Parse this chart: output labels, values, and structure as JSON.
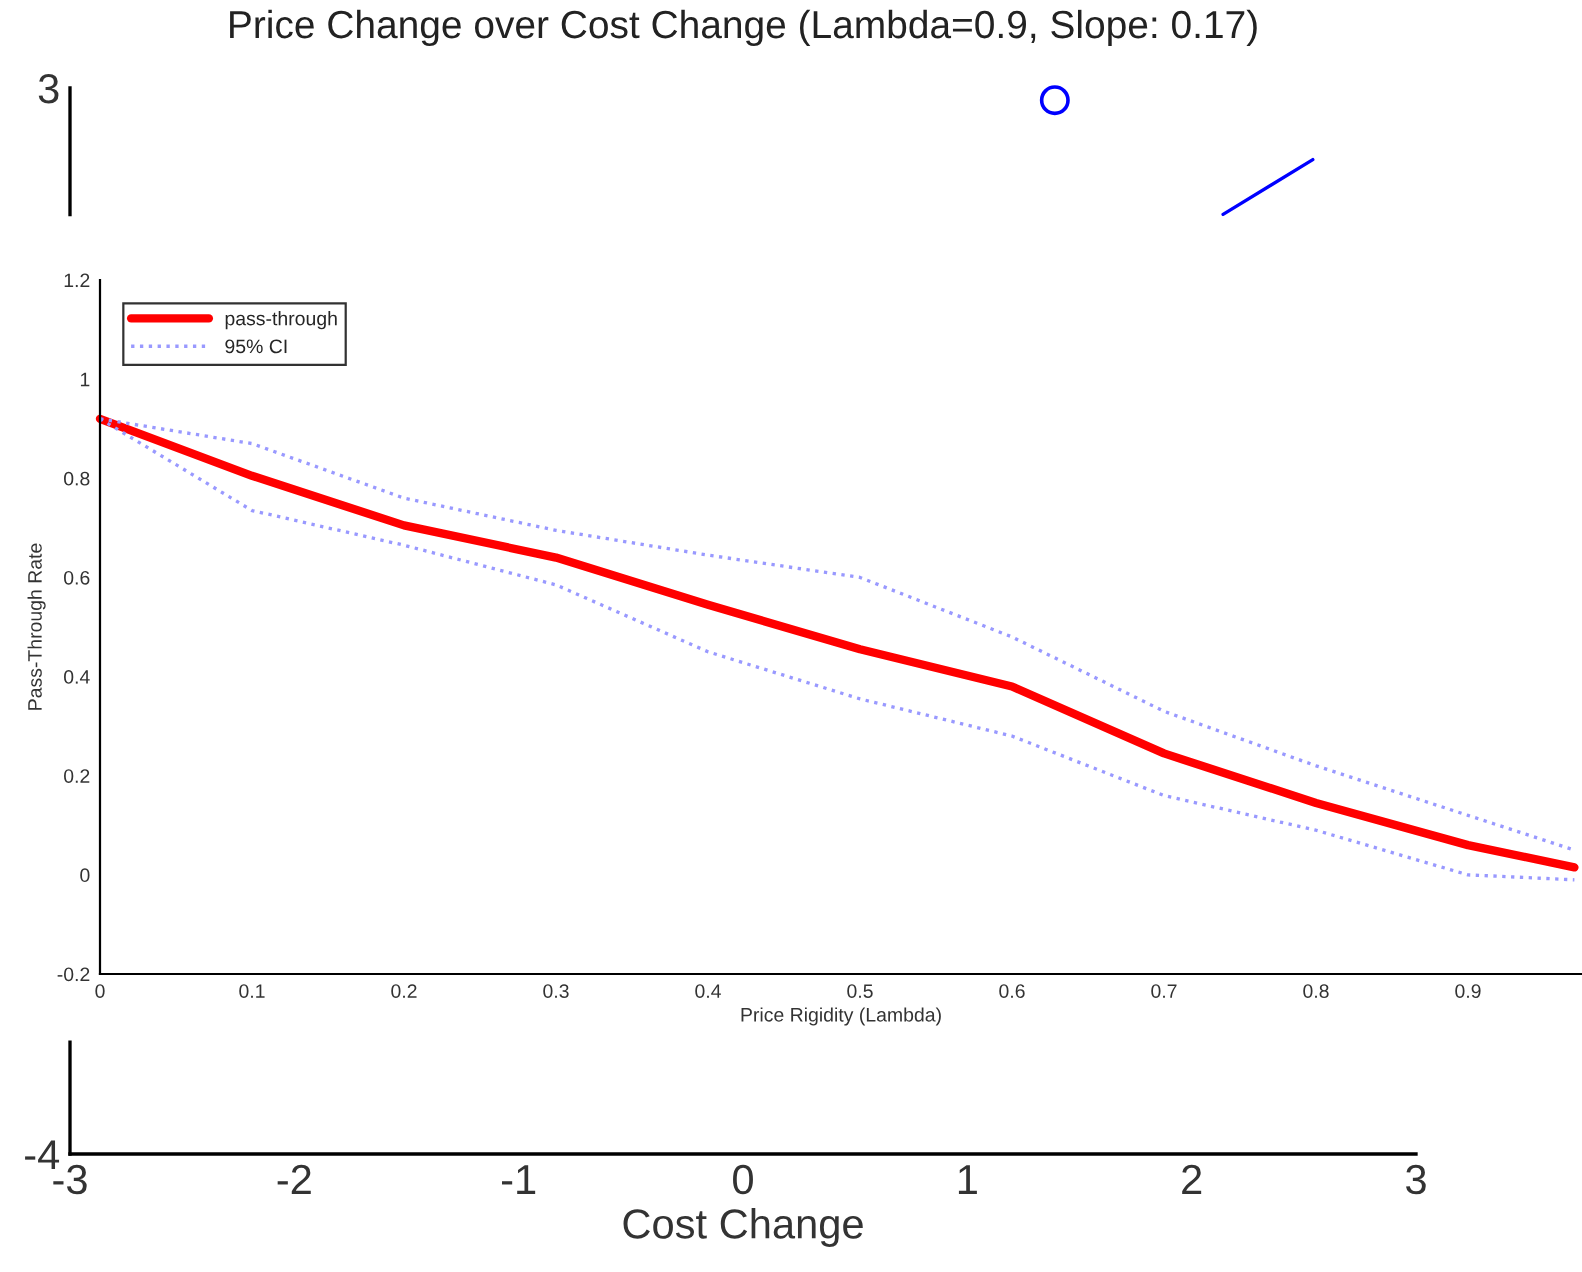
{
  "chart_data": [
    {
      "type": "scatter",
      "title": "Price Change over Cost Change (Lambda=0.9, Slope: 0.17)",
      "xlabel": "Cost Change",
      "xlim": [
        -3,
        3
      ],
      "ylim": [
        -4,
        3
      ],
      "xticks": [
        -3,
        -2,
        -1,
        0,
        1,
        2,
        3
      ],
      "yticks": [
        -4,
        3
      ],
      "grid": false,
      "series": [
        {
          "type": "scatter",
          "marker": "circle",
          "color": "#0000ff",
          "x": [
            1.39
          ],
          "values": [
            2.92
          ]
        },
        {
          "type": "line",
          "color": "#0000ff",
          "x": [
            2.14,
            2.54
          ],
          "values": [
            2.17,
            2.53
          ]
        }
      ]
    },
    {
      "type": "line",
      "xlabel": "Price Rigidity (Lambda)",
      "ylabel": "Pass-Through Rate",
      "xlim": [
        0,
        0.975
      ],
      "ylim": [
        -0.2,
        1.2
      ],
      "xticks": [
        0,
        0.1,
        0.2,
        0.3,
        0.4,
        0.5,
        0.6,
        0.7,
        0.8,
        0.9
      ],
      "yticks": [
        -0.2,
        0,
        0.2,
        0.4,
        0.6,
        0.8,
        1,
        1.2
      ],
      "legend": "top left",
      "grid": false,
      "x": [
        0,
        0.1,
        0.2,
        0.3,
        0.4,
        0.5,
        0.6,
        0.7,
        0.8,
        0.9,
        0.97
      ],
      "series": [
        {
          "name": "pass-through",
          "color": "#ff0000",
          "line_style": "solid",
          "values": [
            0.92,
            0.805,
            0.705,
            0.64,
            0.545,
            0.455,
            0.38,
            0.245,
            0.145,
            0.06,
            0.015
          ]
        },
        {
          "name": "95% CI",
          "color": "#9999ff",
          "line_style": "dotted",
          "values": [
            0.92,
            0.87,
            0.76,
            0.695,
            0.645,
            0.6,
            0.48,
            0.33,
            0.22,
            0.12,
            0.05
          ]
        },
        {
          "color": "#9999ff",
          "line_style": "dotted",
          "values": [
            0.92,
            0.735,
            0.665,
            0.585,
            0.45,
            0.355,
            0.28,
            0.16,
            0.09,
            0.0,
            -0.01
          ]
        }
      ]
    }
  ]
}
